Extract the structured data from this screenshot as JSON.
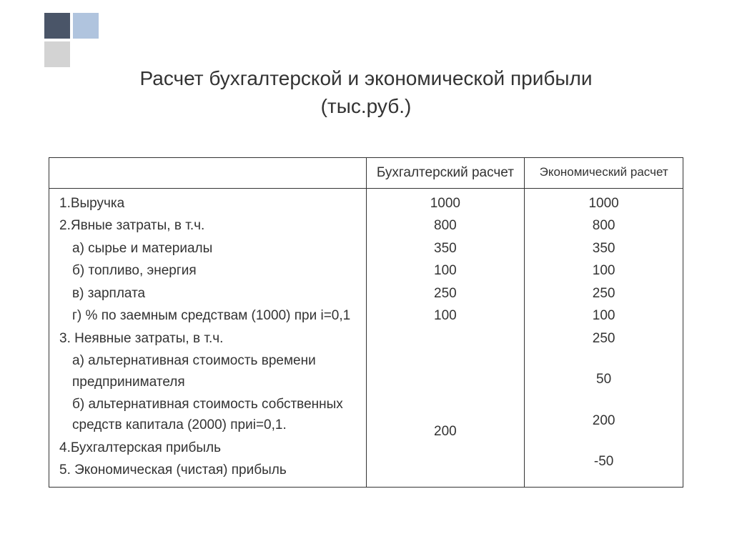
{
  "decoration": {
    "colors": [
      "#4a5568",
      "#b0c4de",
      "#d3d3d3",
      "transparent"
    ]
  },
  "title": {
    "line1": "Расчет бухгалтерской и экономической прибыли",
    "line2": "(тыс.руб.)",
    "fontsize": 28,
    "color": "#333333"
  },
  "table": {
    "border_color": "#333333",
    "background_color": "#ffffff",
    "fontsize": 19,
    "header_fontsize_econ": 17,
    "headers": {
      "label": "",
      "accounting": "Бухгалтерский расчет",
      "economic": "Экономический расчет"
    },
    "rows": [
      {
        "label": "1.Выручка",
        "acc": "1000",
        "econ": "1000",
        "indent": 0
      },
      {
        "label": "2.Явные затраты, в т.ч.",
        "acc": "800",
        "econ": "800",
        "indent": 0
      },
      {
        "label": "а) сырье и материалы",
        "acc": "350",
        "econ": "350",
        "indent": 1
      },
      {
        "label": "б) топливо, энергия",
        "acc": "100",
        "econ": "100",
        "indent": 1
      },
      {
        "label": "в) зарплата",
        "acc": "250",
        "econ": "250",
        "indent": 1
      },
      {
        "label": "г) % по заемным средствам (1000) при i=0,1",
        "acc": "100",
        "econ": "100",
        "indent": 1
      },
      {
        "label": "3. Неявные затраты, в т.ч.",
        "acc": "",
        "econ": "250",
        "indent": 0
      },
      {
        "label": "а) альтернативная стоимость времени предпринимателя",
        "acc": "",
        "econ": "50",
        "indent": 1,
        "multiline": true
      },
      {
        "label": "б) альтернативная стоимость собственных средств капитала (2000) приi=0,1.",
        "acc": "",
        "econ": "200",
        "indent": 1,
        "multiline": true
      },
      {
        "label": "4.Бухгалтерская прибыль",
        "acc": "200",
        "econ": "",
        "indent": 0
      },
      {
        "label": "5. Экономическая (чистая) прибыль",
        "acc": "",
        "econ": "-50",
        "indent": 0
      }
    ]
  }
}
